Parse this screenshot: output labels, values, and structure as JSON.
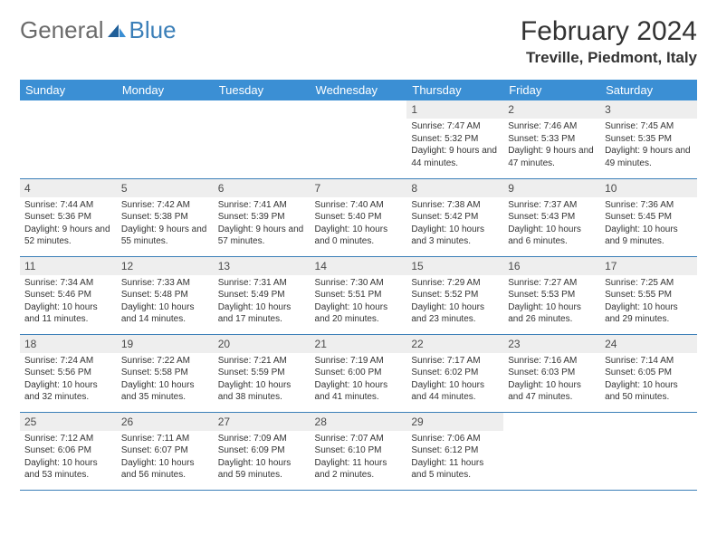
{
  "logo": {
    "text1": "General",
    "text2": "Blue"
  },
  "title": "February 2024",
  "location": "Treville, Piedmont, Italy",
  "colors": {
    "header_bg": "#3b8fd4",
    "header_text": "#ffffff",
    "daynum_bg": "#eeeeee",
    "row_border": "#3b7fb8",
    "logo_gray": "#6b6b6b",
    "logo_blue": "#3b7fb8"
  },
  "weekdays": [
    "Sunday",
    "Monday",
    "Tuesday",
    "Wednesday",
    "Thursday",
    "Friday",
    "Saturday"
  ],
  "weeks": [
    [
      null,
      null,
      null,
      null,
      {
        "n": "1",
        "sr": "7:47 AM",
        "ss": "5:32 PM",
        "dl": "9 hours and 44 minutes."
      },
      {
        "n": "2",
        "sr": "7:46 AM",
        "ss": "5:33 PM",
        "dl": "9 hours and 47 minutes."
      },
      {
        "n": "3",
        "sr": "7:45 AM",
        "ss": "5:35 PM",
        "dl": "9 hours and 49 minutes."
      }
    ],
    [
      {
        "n": "4",
        "sr": "7:44 AM",
        "ss": "5:36 PM",
        "dl": "9 hours and 52 minutes."
      },
      {
        "n": "5",
        "sr": "7:42 AM",
        "ss": "5:38 PM",
        "dl": "9 hours and 55 minutes."
      },
      {
        "n": "6",
        "sr": "7:41 AM",
        "ss": "5:39 PM",
        "dl": "9 hours and 57 minutes."
      },
      {
        "n": "7",
        "sr": "7:40 AM",
        "ss": "5:40 PM",
        "dl": "10 hours and 0 minutes."
      },
      {
        "n": "8",
        "sr": "7:38 AM",
        "ss": "5:42 PM",
        "dl": "10 hours and 3 minutes."
      },
      {
        "n": "9",
        "sr": "7:37 AM",
        "ss": "5:43 PM",
        "dl": "10 hours and 6 minutes."
      },
      {
        "n": "10",
        "sr": "7:36 AM",
        "ss": "5:45 PM",
        "dl": "10 hours and 9 minutes."
      }
    ],
    [
      {
        "n": "11",
        "sr": "7:34 AM",
        "ss": "5:46 PM",
        "dl": "10 hours and 11 minutes."
      },
      {
        "n": "12",
        "sr": "7:33 AM",
        "ss": "5:48 PM",
        "dl": "10 hours and 14 minutes."
      },
      {
        "n": "13",
        "sr": "7:31 AM",
        "ss": "5:49 PM",
        "dl": "10 hours and 17 minutes."
      },
      {
        "n": "14",
        "sr": "7:30 AM",
        "ss": "5:51 PM",
        "dl": "10 hours and 20 minutes."
      },
      {
        "n": "15",
        "sr": "7:29 AM",
        "ss": "5:52 PM",
        "dl": "10 hours and 23 minutes."
      },
      {
        "n": "16",
        "sr": "7:27 AM",
        "ss": "5:53 PM",
        "dl": "10 hours and 26 minutes."
      },
      {
        "n": "17",
        "sr": "7:25 AM",
        "ss": "5:55 PM",
        "dl": "10 hours and 29 minutes."
      }
    ],
    [
      {
        "n": "18",
        "sr": "7:24 AM",
        "ss": "5:56 PM",
        "dl": "10 hours and 32 minutes."
      },
      {
        "n": "19",
        "sr": "7:22 AM",
        "ss": "5:58 PM",
        "dl": "10 hours and 35 minutes."
      },
      {
        "n": "20",
        "sr": "7:21 AM",
        "ss": "5:59 PM",
        "dl": "10 hours and 38 minutes."
      },
      {
        "n": "21",
        "sr": "7:19 AM",
        "ss": "6:00 PM",
        "dl": "10 hours and 41 minutes."
      },
      {
        "n": "22",
        "sr": "7:17 AM",
        "ss": "6:02 PM",
        "dl": "10 hours and 44 minutes."
      },
      {
        "n": "23",
        "sr": "7:16 AM",
        "ss": "6:03 PM",
        "dl": "10 hours and 47 minutes."
      },
      {
        "n": "24",
        "sr": "7:14 AM",
        "ss": "6:05 PM",
        "dl": "10 hours and 50 minutes."
      }
    ],
    [
      {
        "n": "25",
        "sr": "7:12 AM",
        "ss": "6:06 PM",
        "dl": "10 hours and 53 minutes."
      },
      {
        "n": "26",
        "sr": "7:11 AM",
        "ss": "6:07 PM",
        "dl": "10 hours and 56 minutes."
      },
      {
        "n": "27",
        "sr": "7:09 AM",
        "ss": "6:09 PM",
        "dl": "10 hours and 59 minutes."
      },
      {
        "n": "28",
        "sr": "7:07 AM",
        "ss": "6:10 PM",
        "dl": "11 hours and 2 minutes."
      },
      {
        "n": "29",
        "sr": "7:06 AM",
        "ss": "6:12 PM",
        "dl": "11 hours and 5 minutes."
      },
      null,
      null
    ]
  ]
}
